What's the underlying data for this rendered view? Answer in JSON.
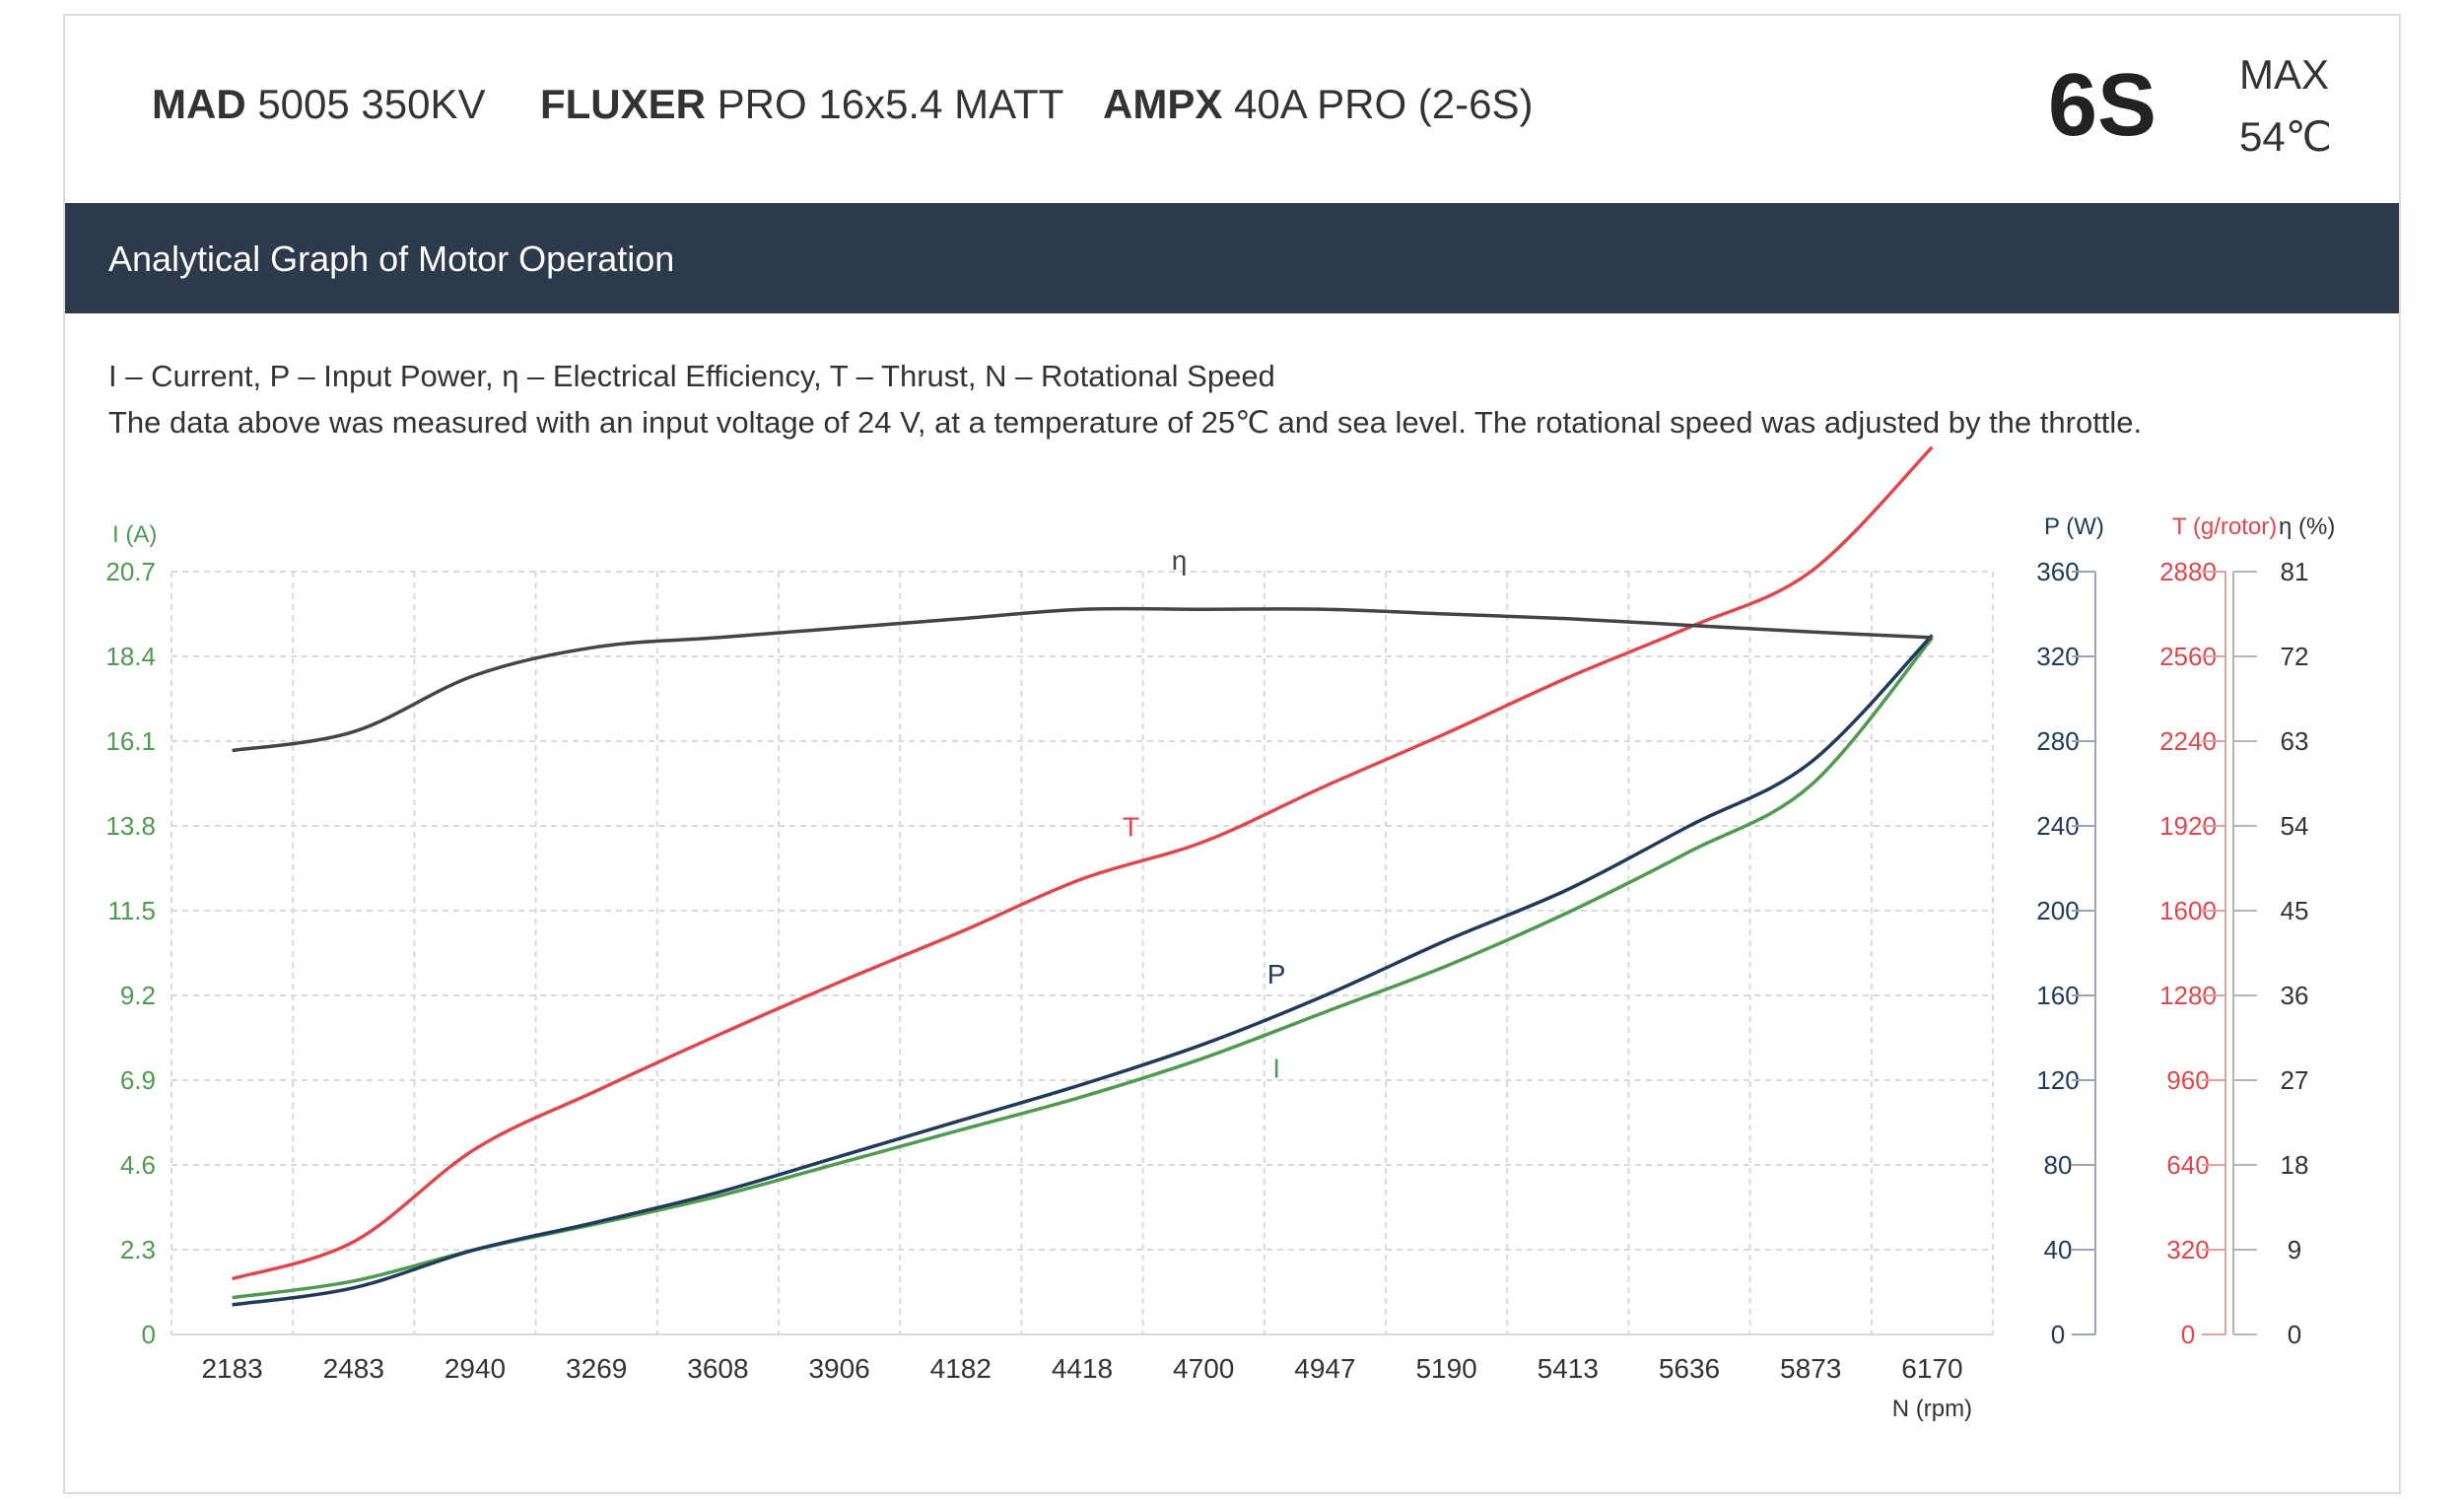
{
  "header": {
    "motor_brand": "MAD",
    "motor_model": "5005 350KV",
    "prop_brand": "FLUXER",
    "prop_model": "PRO 16x5.4 MATT",
    "esc_brand": "AMPX",
    "esc_model": "40A PRO (2-6S)",
    "cells": "6S",
    "max_label": "MAX",
    "max_temp": "54℃"
  },
  "banner": {
    "title": "Analytical Graph of Motor Operation"
  },
  "legend": {
    "line1": "I – Current, P – Input Power, η – Electrical Efficiency, T – Thrust,   N – Rotational Speed",
    "line2": "The data above was measured with an input voltage of 24 V, at a temperature of 25℃ and sea level. The rotational speed was adjusted by the throttle."
  },
  "colors": {
    "current": "#4e9a4e",
    "power": "#1f3a5a",
    "thrust": "#e0474c",
    "efficiency": "#444444",
    "grid": "#d9d9d9"
  },
  "chart_data": {
    "type": "line",
    "x_label": "N (rpm)",
    "x": [
      2183,
      2483,
      2940,
      3269,
      3608,
      3906,
      4182,
      4418,
      4700,
      4947,
      5190,
      5413,
      5636,
      5873,
      6170
    ],
    "axes": {
      "current": {
        "label": "I (A)",
        "ticks": [
          "0",
          "2.3",
          "4.6",
          "6.9",
          "9.2",
          "11.5",
          "13.8",
          "16.1",
          "18.4",
          "20.7"
        ],
        "range": [
          0,
          20.7
        ]
      },
      "power": {
        "label": "P (W)",
        "ticks": [
          "0",
          "40",
          "80",
          "120",
          "160",
          "200",
          "240",
          "280",
          "320",
          "360"
        ],
        "range": [
          0,
          360
        ]
      },
      "thrust": {
        "label": "T (g/rotor)",
        "ticks": [
          "0",
          "320",
          "640",
          "960",
          "1280",
          "1600",
          "1920",
          "2240",
          "2560",
          "2880"
        ],
        "range": [
          0,
          2880
        ]
      },
      "efficiency": {
        "label": "η (%)",
        "ticks": [
          "0",
          "9",
          "18",
          "27",
          "36",
          "45",
          "54",
          "63",
          "72",
          "81"
        ],
        "range": [
          0,
          81
        ]
      }
    },
    "series": [
      {
        "name": "I",
        "axis": "current",
        "values": [
          1.0,
          1.45,
          2.3,
          3.0,
          3.75,
          4.65,
          5.55,
          6.45,
          7.5,
          8.75,
          10.0,
          11.45,
          13.1,
          14.9,
          18.9
        ]
      },
      {
        "name": "P",
        "axis": "power",
        "values": [
          14,
          22,
          40,
          53,
          67,
          84,
          101,
          118,
          137,
          160,
          186,
          210,
          240,
          270,
          330
        ]
      },
      {
        "name": "T",
        "axis": "thrust",
        "values": [
          210,
          350,
          700,
          920,
          1130,
          1330,
          1520,
          1720,
          1860,
          2070,
          2270,
          2480,
          2670,
          2880,
          3350
        ]
      },
      {
        "name": "η",
        "axis": "efficiency",
        "values": [
          62,
          64,
          70,
          73,
          74,
          75,
          76,
          77,
          77,
          77,
          76.5,
          76,
          75.3,
          74.6,
          74
        ]
      }
    ],
    "grid": true
  }
}
